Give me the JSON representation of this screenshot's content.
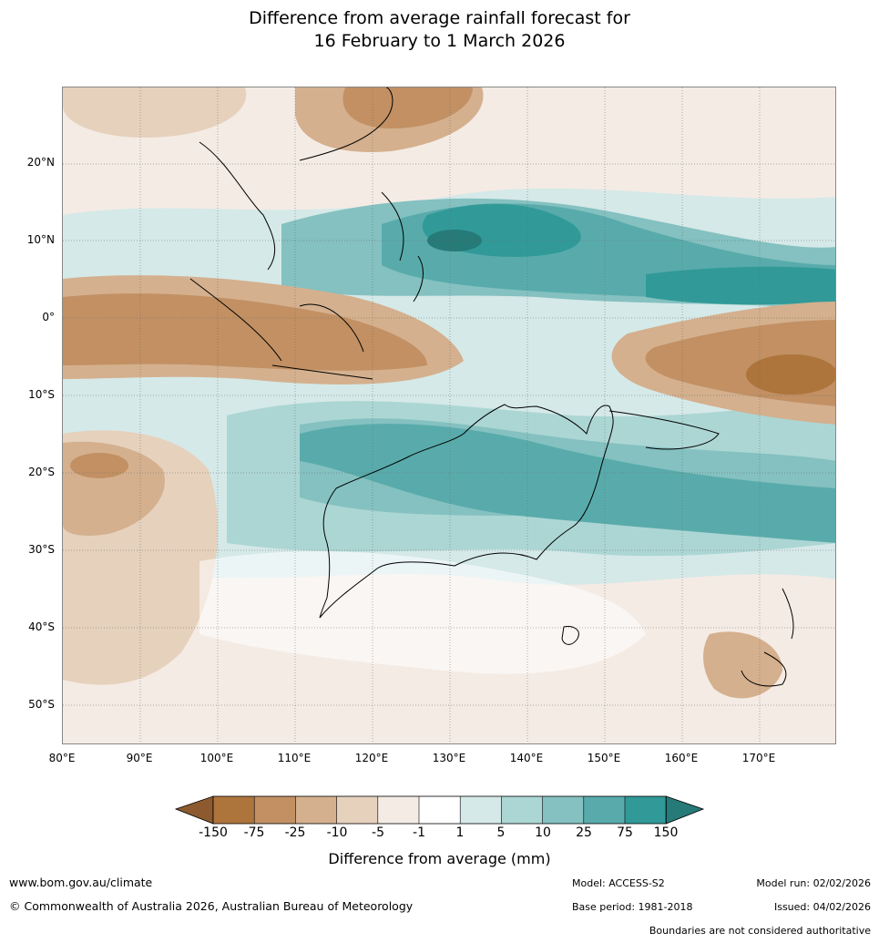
{
  "title": {
    "line1": "Difference from average rainfall forecast for",
    "line2": "16 February to 1 March 2026"
  },
  "map": {
    "lat_labels": [
      "20°N",
      "10°N",
      "0°",
      "10°S",
      "20°S",
      "30°S",
      "40°S",
      "50°S"
    ],
    "lon_labels": [
      "80°E",
      "90°E",
      "100°E",
      "110°E",
      "120°E",
      "130°E",
      "140°E",
      "150°E",
      "160°E",
      "170°E"
    ]
  },
  "colorbar": {
    "labels": [
      "-150",
      "-75",
      "-25",
      "-10",
      "-5",
      "-1",
      "1",
      "5",
      "10",
      "25",
      "75",
      "150"
    ],
    "colors": {
      "low_extreme": "#8c5a2e",
      "b_m150_m75": "#ad743c",
      "b_m75_m25": "#c29063",
      "b_m25_m10": "#d4b08e",
      "b_m10_m5": "#e6d1bd",
      "b_m5_m1": "#f4ebe4",
      "b_m1_1": "#ffffff",
      "b_1_5": "#d5e9e8",
      "b_5_10": "#acd6d4",
      "b_10_25": "#84c1c0",
      "b_25_75": "#59abab",
      "b_75_150": "#319a98",
      "high_extreme": "#267a78"
    },
    "title": "Difference from average (mm)"
  },
  "footer": {
    "url": "www.bom.gov.au/climate",
    "copyright": "© Commonwealth of Australia 2026, Australian Bureau of Meteorology",
    "model": "Model: ACCESS-S2",
    "base_period": "Base period: 1981-2018",
    "model_run": "Model run: 02/02/2026",
    "issued": "Issued: 04/02/2026",
    "disclaimer": "Boundaries are not considered authoritative"
  }
}
